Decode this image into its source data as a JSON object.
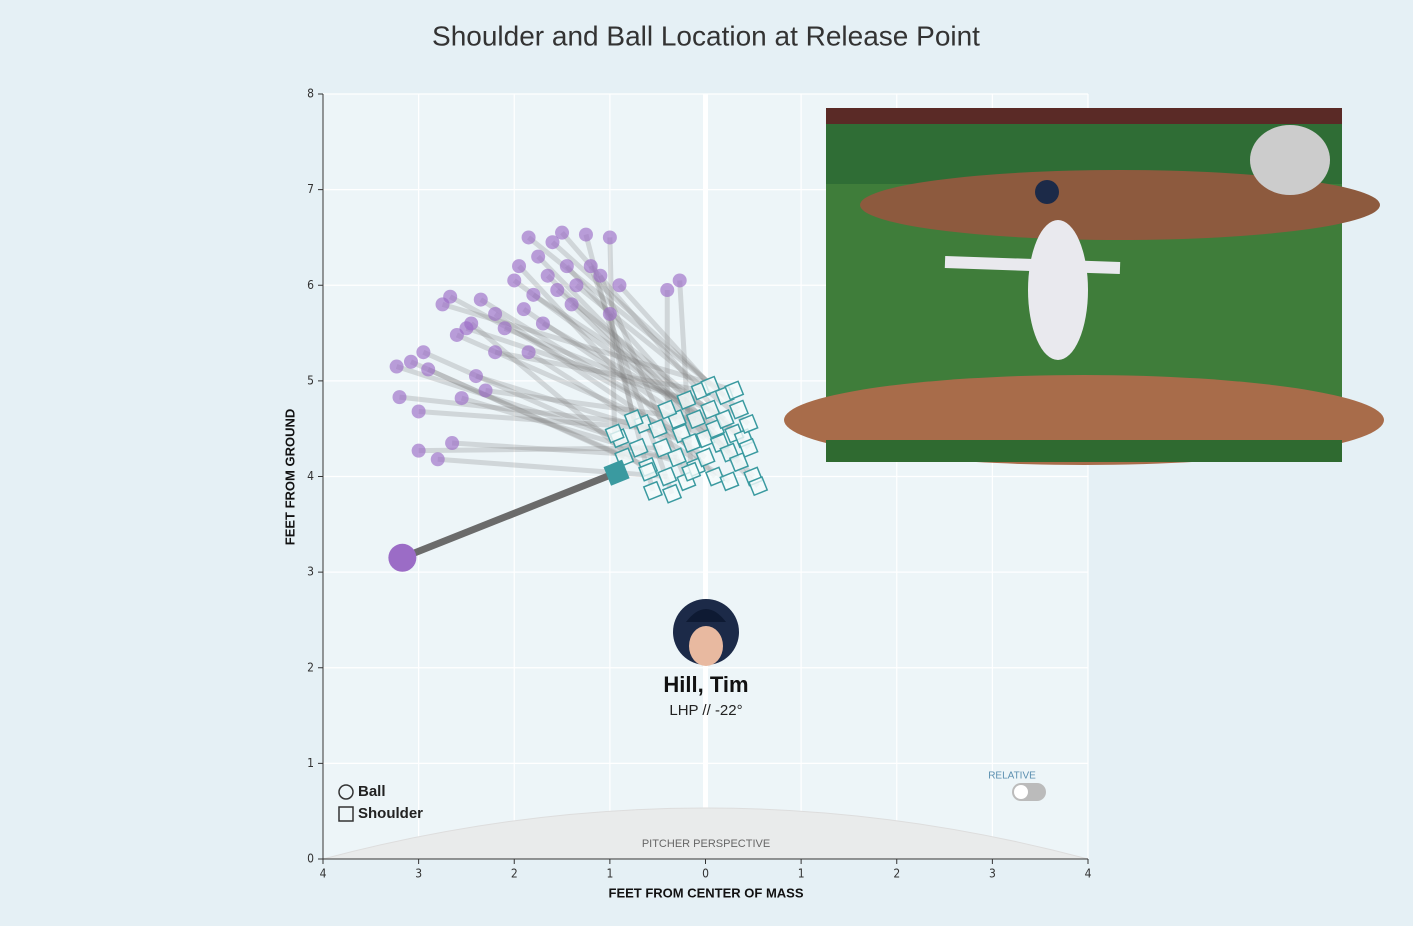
{
  "chart_data": {
    "type": "scatter",
    "title": "Shoulder and Ball Location at Release Point",
    "xlabel": "FEET FROM CENTER OF MASS",
    "ylabel": "FEET FROM GROUND",
    "xlim": [
      -4,
      4
    ],
    "ylim": [
      0,
      8
    ],
    "xticks": [
      {
        "value": -4,
        "label": "4"
      },
      {
        "value": -3,
        "label": "3"
      },
      {
        "value": -2,
        "label": "2"
      },
      {
        "value": -1,
        "label": "1"
      },
      0,
      1,
      2,
      3,
      4
    ],
    "yticks": [
      0,
      1,
      2,
      3,
      4,
      5,
      6,
      7,
      8
    ],
    "grid": true,
    "series": [
      {
        "name": "Ball",
        "color": "#9b6cc6",
        "x": [
          -3.23,
          -3.08,
          -2.95,
          -2.9,
          -3.2,
          -3.0,
          -3.0,
          -2.8,
          -2.65,
          -2.67,
          -2.6,
          -2.5,
          -2.4,
          -2.55,
          -2.3,
          -2.2,
          -2.35,
          -2.2,
          -2.1,
          -2.0,
          -1.95,
          -1.9,
          -1.85,
          -1.8,
          -1.75,
          -1.7,
          -1.65,
          -1.6,
          -1.55,
          -1.5,
          -1.45,
          -1.4,
          -1.35,
          -1.25,
          -1.2,
          -1.1,
          -1.0,
          -1.0,
          -0.9,
          -0.4,
          -0.27,
          -1.85,
          -2.45,
          -2.75
        ],
        "values": [
          5.15,
          5.2,
          5.3,
          5.12,
          4.83,
          4.68,
          4.27,
          4.18,
          4.35,
          5.88,
          5.48,
          5.55,
          5.05,
          4.82,
          4.9,
          5.3,
          5.85,
          5.7,
          5.55,
          6.05,
          6.2,
          5.75,
          6.5,
          5.9,
          6.3,
          5.6,
          6.1,
          6.45,
          5.95,
          6.55,
          6.2,
          5.8,
          6.0,
          6.53,
          6.2,
          6.1,
          5.7,
          6.5,
          6.0,
          5.95,
          6.05,
          5.3,
          5.6,
          5.8
        ]
      },
      {
        "name": "Shoulder",
        "color": "#3a9aa0",
        "x": [
          -0.9,
          -0.85,
          -0.7,
          -0.6,
          -0.65,
          -0.5,
          -0.45,
          -0.4,
          -0.3,
          -0.3,
          -0.25,
          -0.2,
          -0.15,
          -0.1,
          -0.1,
          -0.05,
          0.0,
          0.0,
          0.05,
          0.1,
          0.1,
          0.15,
          0.2,
          0.2,
          0.25,
          0.3,
          0.35,
          0.35,
          0.4,
          0.45,
          0.5,
          0.55,
          0.45,
          -0.55,
          -0.35,
          -0.2,
          -0.75,
          -0.95,
          0.05,
          -0.4,
          -0.15,
          0.25,
          -0.6,
          0.3
        ],
        "values": [
          4.4,
          4.2,
          4.3,
          4.1,
          4.55,
          4.5,
          4.3,
          4.0,
          4.2,
          4.6,
          4.45,
          4.8,
          4.35,
          4.1,
          4.6,
          4.9,
          4.4,
          4.2,
          4.7,
          4.5,
          4.0,
          4.35,
          4.85,
          4.6,
          4.25,
          4.45,
          4.15,
          4.7,
          4.4,
          4.3,
          4.0,
          3.9,
          4.55,
          3.85,
          3.82,
          3.95,
          4.6,
          4.45,
          4.95,
          4.7,
          4.05,
          3.95,
          4.05,
          4.9
        ]
      }
    ],
    "release": {
      "ball": {
        "x": -3.17,
        "y": 3.15
      },
      "shoulder": {
        "x": -0.93,
        "y": 4.04
      }
    },
    "player": {
      "name": "Hill, Tim",
      "subtitle": "LHP // -22°"
    },
    "footer": "PITCHER PERSPECTIVE",
    "toggle": "RELATIVE"
  }
}
